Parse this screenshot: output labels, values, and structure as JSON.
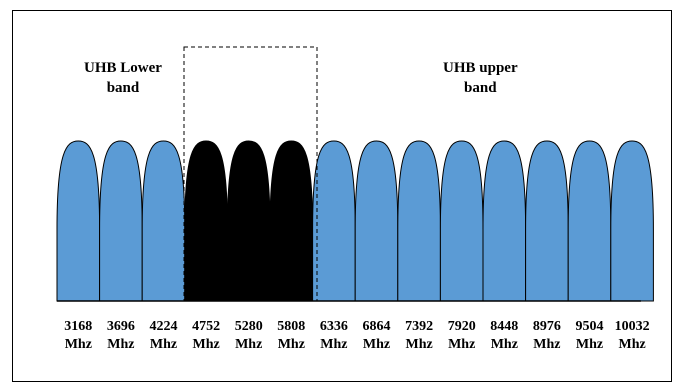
{
  "labels": {
    "lower_line1": "UHB Lower",
    "lower_line2": "band",
    "upper_line1": "UHB upper",
    "upper_line2": "band"
  },
  "unit": "Mhz",
  "bands": [
    {
      "freq": "3168",
      "group": "lower"
    },
    {
      "freq": "3696",
      "group": "lower"
    },
    {
      "freq": "4224",
      "group": "lower"
    },
    {
      "freq": "4752",
      "group": "excluded"
    },
    {
      "freq": "5280",
      "group": "excluded"
    },
    {
      "freq": "5808",
      "group": "excluded"
    },
    {
      "freq": "6336",
      "group": "upper"
    },
    {
      "freq": "6864",
      "group": "upper"
    },
    {
      "freq": "7392",
      "group": "upper"
    },
    {
      "freq": "7920",
      "group": "upper"
    },
    {
      "freq": "8448",
      "group": "upper"
    },
    {
      "freq": "8976",
      "group": "upper"
    },
    {
      "freq": "9504",
      "group": "upper"
    },
    {
      "freq": "10032",
      "group": "upper"
    }
  ],
  "colors": {
    "band_fill": "#5b9bd5",
    "excluded_fill": "#000000",
    "outline": "#000000"
  }
}
